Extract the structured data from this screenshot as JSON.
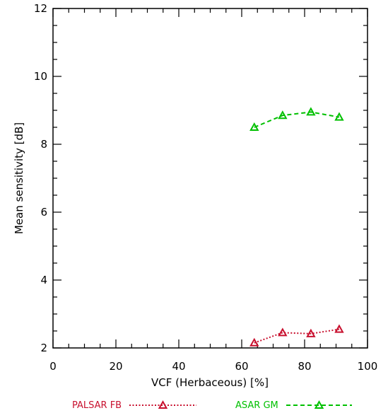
{
  "chart_data": {
    "type": "line",
    "xlabel": "VCF (Herbaceous) [%]",
    "ylabel": "Mean sensitivity [dB]",
    "xlim": [
      0,
      100
    ],
    "ylim": [
      2,
      12
    ],
    "x_ticks": [
      0,
      20,
      40,
      60,
      80,
      100
    ],
    "y_ticks": [
      2,
      4,
      6,
      8,
      10,
      12
    ],
    "grid": false,
    "legend_position": "bottom",
    "series": [
      {
        "name": "PALSAR FB",
        "color": "#c8102e",
        "line_style": "dotted",
        "marker": "triangle-open",
        "x": [
          64,
          73,
          82,
          91
        ],
        "y": [
          2.15,
          2.45,
          2.42,
          2.55
        ]
      },
      {
        "name": "ASAR GM",
        "color": "#00c000",
        "line_style": "dashed",
        "marker": "triangle-open",
        "x": [
          64,
          73,
          82,
          91
        ],
        "y": [
          8.5,
          8.85,
          8.95,
          8.8
        ]
      }
    ]
  }
}
